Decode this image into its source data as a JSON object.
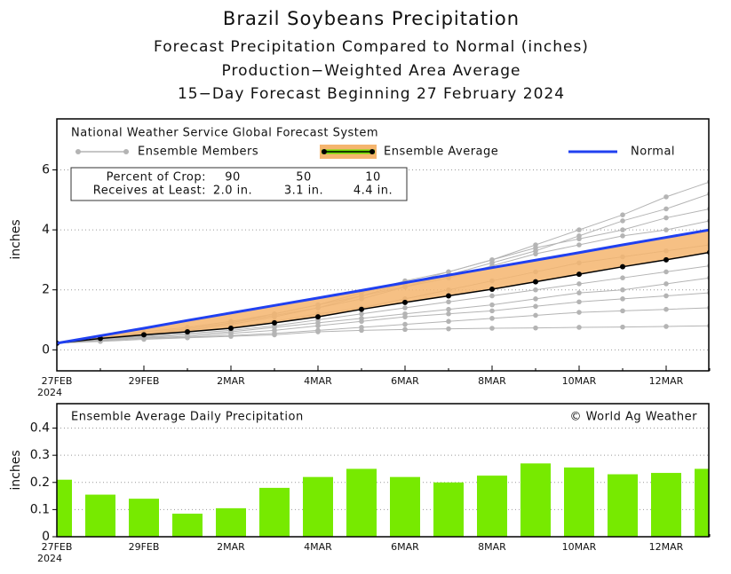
{
  "chart_data": [
    {
      "type": "line",
      "title": "Brazil Soybeans Precipitation",
      "subtitles": [
        "Forecast Precipitation Compared to Normal (inches)",
        "Production−Weighted Area Average",
        "15−Day Forecast Beginning 27 February 2024"
      ],
      "ylabel": "inches",
      "categories": [
        "27FEB",
        null,
        "29FEB",
        null,
        "2MAR",
        null,
        "4MAR",
        null,
        "6MAR",
        null,
        "8MAR",
        null,
        "10MAR",
        null,
        "12MAR",
        null
      ],
      "year_label": "2024",
      "ylim": [
        -0.7,
        7.7
      ],
      "yticks": [
        0,
        2,
        4,
        6
      ],
      "grid": true,
      "legend_title": "National Weather Service Global Forecast System",
      "ensemble_members": {
        "name": "Ensemble Members",
        "color": "#b4b4b4",
        "values": [
          [
            0.22,
            0.4,
            0.6,
            0.75,
            0.95,
            1.2,
            1.5,
            1.9,
            2.3,
            2.6,
            3.0,
            3.5,
            4.0,
            4.5,
            5.1,
            5.6
          ],
          [
            0.22,
            0.4,
            0.55,
            0.7,
            0.9,
            1.15,
            1.4,
            1.7,
            2.1,
            2.5,
            2.9,
            3.3,
            3.8,
            4.3,
            4.7,
            5.2
          ],
          [
            0.22,
            0.38,
            0.5,
            0.65,
            0.85,
            1.1,
            1.4,
            1.8,
            2.2,
            2.6,
            3.0,
            3.4,
            3.7,
            4.0,
            4.4,
            4.7
          ],
          [
            0.22,
            0.4,
            0.55,
            0.7,
            0.9,
            1.2,
            1.5,
            1.8,
            2.1,
            2.4,
            2.8,
            3.2,
            3.5,
            3.8,
            4.0,
            4.3
          ],
          [
            0.22,
            0.35,
            0.48,
            0.6,
            0.75,
            0.95,
            1.2,
            1.4,
            1.7,
            2.0,
            2.3,
            2.6,
            2.9,
            3.1,
            3.3,
            3.5
          ],
          [
            0.22,
            0.35,
            0.45,
            0.55,
            0.65,
            0.8,
            1.0,
            1.2,
            1.4,
            1.6,
            1.8,
            2.0,
            2.2,
            2.4,
            2.6,
            2.8
          ],
          [
            0.22,
            0.33,
            0.42,
            0.5,
            0.6,
            0.75,
            0.9,
            1.05,
            1.2,
            1.35,
            1.5,
            1.7,
            1.9,
            2.0,
            2.2,
            2.4
          ],
          [
            0.22,
            0.32,
            0.4,
            0.45,
            0.55,
            0.65,
            0.8,
            0.95,
            1.1,
            1.2,
            1.3,
            1.45,
            1.6,
            1.7,
            1.8,
            1.9
          ],
          [
            0.22,
            0.3,
            0.38,
            0.42,
            0.48,
            0.55,
            0.65,
            0.75,
            0.85,
            0.95,
            1.05,
            1.15,
            1.25,
            1.3,
            1.35,
            1.4
          ],
          [
            0.22,
            0.28,
            0.35,
            0.4,
            0.45,
            0.5,
            0.6,
            0.65,
            0.68,
            0.7,
            0.72,
            0.73,
            0.75,
            0.76,
            0.78,
            0.8
          ]
        ]
      },
      "series": [
        {
          "name": "Ensemble Average",
          "color": "#000000",
          "band_color": "#f5b56e",
          "values": [
            0.22,
            0.38,
            0.5,
            0.6,
            0.72,
            0.9,
            1.1,
            1.35,
            1.58,
            1.8,
            2.02,
            2.27,
            2.52,
            2.77,
            3.0,
            3.25
          ]
        },
        {
          "name": "Normal",
          "color": "#2040f0",
          "values": [
            0.22,
            0.47,
            0.72,
            0.98,
            1.23,
            1.48,
            1.73,
            1.98,
            2.24,
            2.49,
            2.74,
            2.99,
            3.24,
            3.5,
            3.75,
            4.0
          ]
        }
      ],
      "crop_table": {
        "rows": [
          [
            "Percent of Crop:",
            "90",
            "50",
            "10"
          ],
          [
            "Receives at Least:",
            "2.0 in.",
            "3.1 in.",
            "4.4 in."
          ]
        ]
      }
    },
    {
      "type": "bar",
      "title": "Ensemble Average Daily Precipitation",
      "credit": "© World Ag Weather",
      "ylabel": "inches",
      "categories": [
        "27FEB",
        null,
        "29FEB",
        null,
        "2MAR",
        null,
        "4MAR",
        null,
        "6MAR",
        null,
        "8MAR",
        null,
        "10MAR",
        null,
        "12MAR",
        null
      ],
      "year_label": "2024",
      "ylim": [
        0,
        0.49
      ],
      "yticks": [
        0,
        0.1,
        0.2,
        0.3,
        0.4
      ],
      "grid": true,
      "color": "#77ea00",
      "values": [
        0.21,
        0.155,
        0.14,
        0.085,
        0.105,
        0.18,
        0.22,
        0.25,
        0.22,
        0.2,
        0.225,
        0.27,
        0.255,
        0.23,
        0.235,
        0.25
      ]
    }
  ]
}
